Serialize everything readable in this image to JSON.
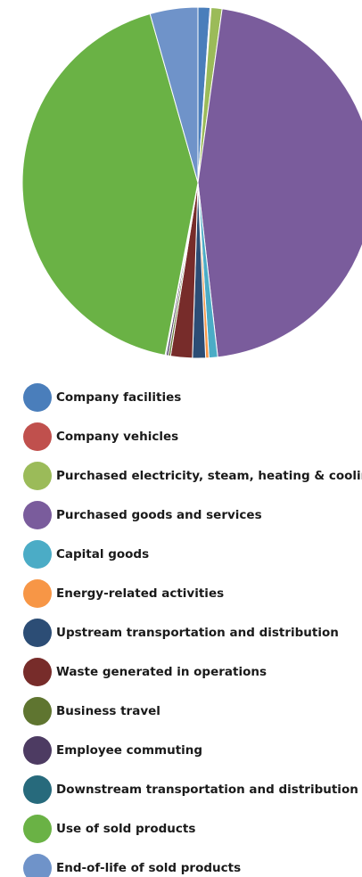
{
  "chart_data": {
    "type": "pie",
    "categories": [
      "Company facilities",
      "Company vehicles",
      "Purchased electricity, steam, heating & cooling",
      "Purchased goods and services",
      "Capital goods",
      "Energy-related activities",
      "Upstream transportation and distribution",
      "Waste generated in operations",
      "Business travel",
      "Employee commuting",
      "Downstream transportation and distribution",
      "Use of sold products",
      "End-of-life of sold products"
    ],
    "values": [
      1.1,
      0.1,
      1,
      46,
      0.8,
      0.3,
      1.2,
      2,
      0.2,
      0.2,
      0.1,
      42.6,
      4.4
    ],
    "colors": [
      "#4a7ebb",
      "#c0504d",
      "#9bbb59",
      "#7a5c9c",
      "#4bacc6",
      "#f79646",
      "#2c4d75",
      "#772c2a",
      "#5f7530",
      "#4d3b62",
      "#276a7c",
      "#6ab245",
      "#6f93c9"
    ],
    "legend": "bottom"
  }
}
